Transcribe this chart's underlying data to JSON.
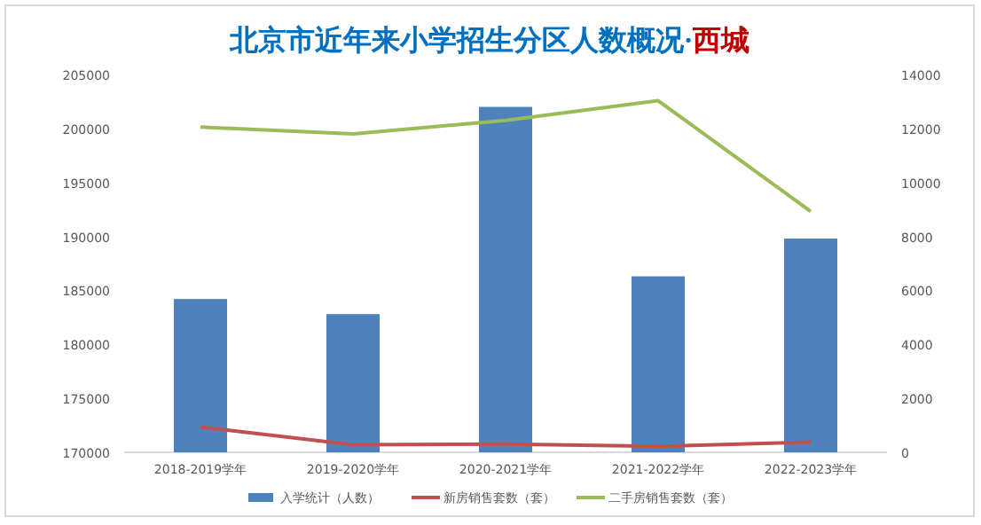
{
  "chart_data": {
    "type": "bar",
    "title": "北京市近年来小学招生分区人数概况·西城",
    "categories": [
      "2018-2019学年",
      "2019-2020学年",
      "2020-2021学年",
      "2021-2022学年",
      "2022-2023学年"
    ],
    "series": [
      {
        "name": "入学统计（人数）",
        "color": "#4f81bd",
        "values": [
          184200,
          182800,
          202000,
          186300,
          189800
        ]
      },
      {
        "name": "新房销售套数（套）",
        "color": "#c0504d",
        "type": "line",
        "axis": "y2",
        "values": [
          940,
          280,
          300,
          220,
          380
        ]
      },
      {
        "name": "二手房销售套数（套）",
        "color": "#9bbb59",
        "type": "line",
        "axis": "y2",
        "values": [
          12050,
          11800,
          12300,
          13030,
          8930
        ]
      }
    ],
    "ylim": [
      170000,
      205000
    ],
    "yticks": [
      170000,
      175000,
      180000,
      185000,
      190000,
      195000,
      200000,
      205000
    ],
    "y2lim": [
      0,
      14000
    ],
    "y2ticks": [
      0,
      2000,
      4000,
      6000,
      8000,
      10000,
      12000,
      14000
    ],
    "grid": false,
    "legend": "bottom",
    "marker": "none",
    "line_style": "solid"
  }
}
